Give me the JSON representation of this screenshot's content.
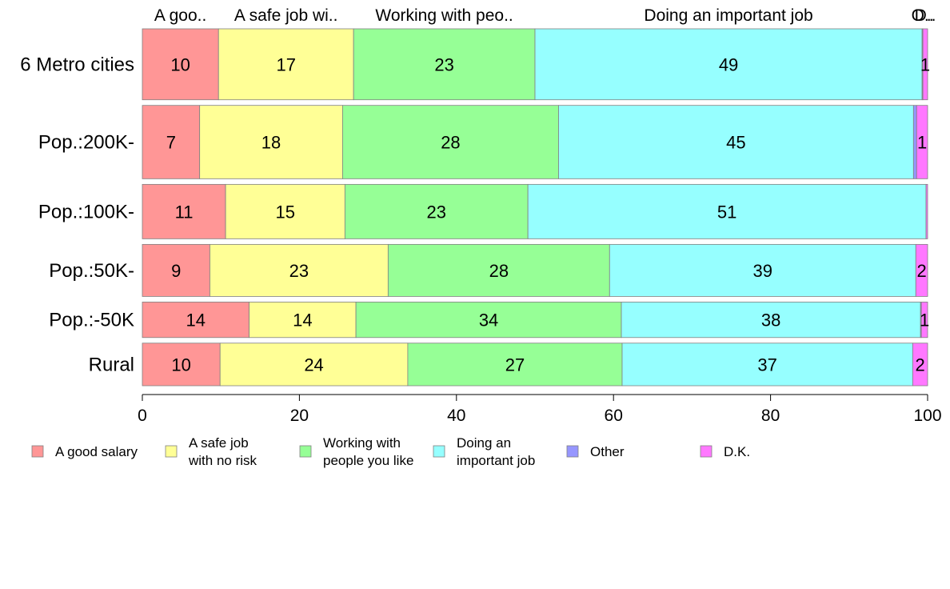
{
  "chart_data": {
    "type": "bar",
    "orientation": "horizontal",
    "stacked": true,
    "categories": [
      "6 Metro cities",
      "Pop.:200K-",
      "Pop.:100K-",
      "Pop.:50K-",
      "Pop.:-50K",
      "Rural"
    ],
    "series": [
      {
        "name": "A good salary",
        "color": "#FF9696",
        "values": [
          9.7,
          7.3,
          10.6,
          8.6,
          13.6,
          9.9
        ]
      },
      {
        "name": "A safe job with no risk",
        "color": "#FFFF96",
        "values": [
          17.2,
          18.2,
          15.2,
          22.7,
          13.6,
          23.9
        ]
      },
      {
        "name": "Working with people you like",
        "color": "#96FF96",
        "values": [
          23.1,
          27.5,
          23.3,
          28.2,
          33.8,
          27.3
        ]
      },
      {
        "name": "Doing an important job",
        "color": "#96FFFF",
        "values": [
          49.3,
          45.2,
          50.7,
          39.0,
          38.1,
          37.0
        ]
      },
      {
        "name": "Other",
        "color": "#9696FF",
        "values": [
          0.1,
          0.4,
          0.0,
          0.0,
          0.1,
          0.0
        ]
      },
      {
        "name": "D.K.",
        "color": "#FF78FF",
        "values": [
          0.6,
          1.4,
          0.2,
          1.5,
          0.8,
          1.9
        ]
      }
    ],
    "bar_labels": [
      [
        "10",
        "17",
        "23",
        "49",
        "",
        "1"
      ],
      [
        "7",
        "18",
        "28",
        "45",
        "",
        "1"
      ],
      [
        "11",
        "15",
        "23",
        "51",
        "",
        ""
      ],
      [
        "9",
        "23",
        "28",
        "39",
        "",
        "2"
      ],
      [
        "14",
        "14",
        "34",
        "38",
        "",
        "1"
      ],
      [
        "10",
        "24",
        "27",
        "37",
        "",
        "2"
      ]
    ],
    "bar_widths": [
      3.0,
      3.1,
      2.3,
      2.2,
      1.5,
      1.8
    ],
    "top_labels": [
      "A goo..",
      "A safe job wi..",
      "Working with peo..",
      "Doing an important job",
      "O..",
      "D.."
    ],
    "legend_labels": [
      [
        "A good salary"
      ],
      [
        "A safe job",
        "with no risk"
      ],
      [
        "Working with",
        "people you like"
      ],
      [
        "Doing an",
        "important job"
      ],
      [
        "Other"
      ],
      [
        "D.K."
      ]
    ],
    "legend_position": "bottom",
    "xlim": [
      0,
      100
    ],
    "xticks": [
      0,
      20,
      40,
      60,
      80,
      100
    ],
    "xtick_labels": [
      "0",
      "20",
      "40",
      "60",
      "80",
      "100"
    ],
    "xlabel": "",
    "ylabel": "",
    "title": ""
  }
}
